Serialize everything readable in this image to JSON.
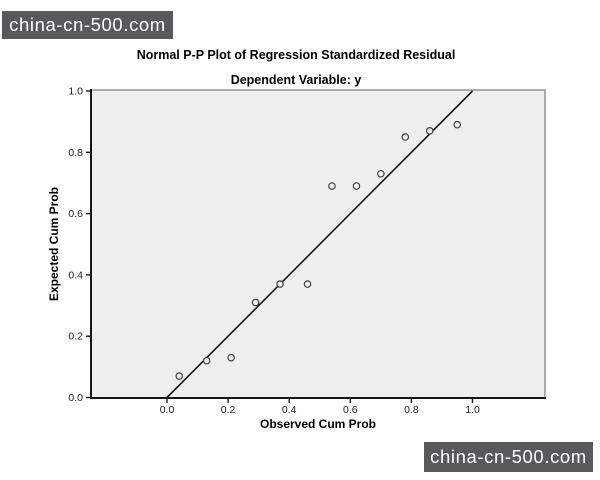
{
  "watermarks": {
    "top_left_text": "china-cn-500.com",
    "bottom_right_text": "china-cn-500.com",
    "bg_color": "#59595b",
    "text_color": "#ffffff"
  },
  "chart_data": {
    "type": "scatter",
    "title": "Normal P-P Plot of Regression Standardized Residual",
    "subtitle": "Dependent Variable: y",
    "xlabel": "Observed Cum Prob",
    "ylabel": "Expected Cum Prob",
    "xlim": [
      -0.25,
      1.24
    ],
    "ylim": [
      0,
      1
    ],
    "x_ticks": [
      0,
      0.2,
      0.4,
      0.6,
      0.8,
      1.0
    ],
    "y_ticks": [
      0,
      0.2,
      0.4,
      0.6,
      0.8,
      1.0
    ],
    "x_tick_labels": [
      "0.0",
      "0.2",
      "0.4",
      "0.6",
      "0.8",
      "1.0"
    ],
    "y_tick_labels": [
      "0.0",
      "0.2",
      "0.4",
      "0.6",
      "0.8",
      "1.0"
    ],
    "grid": false,
    "legend": false,
    "marker": "open-circle",
    "plot_bg_color": "#f0efef",
    "line_color": "#161616",
    "marker_color": "#3f3f3f",
    "reference_line": {
      "from": {
        "x": 0,
        "y": 0
      },
      "to": {
        "x": 1,
        "y": 1
      }
    },
    "points": [
      {
        "x": 0.04,
        "y": 0.07
      },
      {
        "x": 0.13,
        "y": 0.12
      },
      {
        "x": 0.21,
        "y": 0.13
      },
      {
        "x": 0.29,
        "y": 0.31
      },
      {
        "x": 0.37,
        "y": 0.37
      },
      {
        "x": 0.46,
        "y": 0.37
      },
      {
        "x": 0.54,
        "y": 0.69
      },
      {
        "x": 0.62,
        "y": 0.69
      },
      {
        "x": 0.7,
        "y": 0.73
      },
      {
        "x": 0.78,
        "y": 0.85
      },
      {
        "x": 0.86,
        "y": 0.87
      },
      {
        "x": 0.95,
        "y": 0.89
      }
    ]
  }
}
